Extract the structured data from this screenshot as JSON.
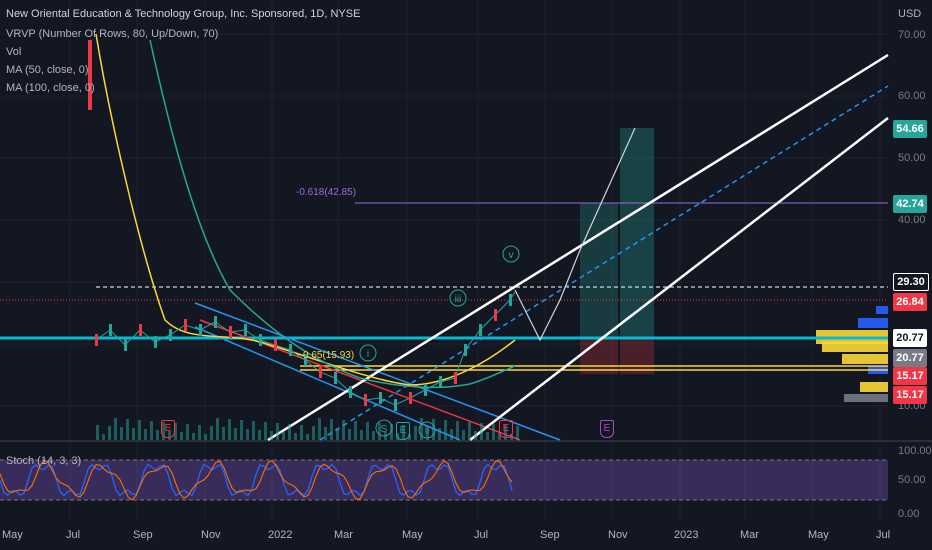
{
  "chart": {
    "title": "New Oriental Education & Technology Group, Inc. Sponsored, 1D, NYSE",
    "indicators": [
      "VRVP (Number Of Rows, 80, Up/Down, 70)",
      "Vol",
      "MA (50, close, 0)",
      "MA (100, close, 0)"
    ],
    "currency": "USD",
    "fib_label": "-0.618(42.85)",
    "fib_label2": "0.65(15.93)",
    "stoch_label": "Stoch (14, 3, 3)",
    "colors": {
      "background": "#131722",
      "cyan": "#00bcd4",
      "yellow": "#fdd835",
      "stoch_band": "#7e57c2",
      "red": "#f23645",
      "blue": "#2962ff"
    }
  },
  "price_axis": {
    "ticks": [
      "70.00",
      "60.00",
      "50.00",
      "40.00",
      "10.00"
    ],
    "tags": [
      {
        "value": "54.66",
        "color": "#26a69a",
        "text_color": "#ffffff"
      },
      {
        "value": "42.74",
        "color": "#26a69a",
        "text_color": "#ffffff"
      },
      {
        "value": "29.30",
        "color": "#131722",
        "text_color": "#ffffff"
      },
      {
        "value": "26.84",
        "color": "#f23645",
        "text_color": "#ffffff"
      },
      {
        "value": "20.77",
        "color": "#ffffff",
        "text_color": "#131722"
      },
      {
        "value": "20.77",
        "color": "#787b86",
        "text_color": "#ffffff"
      },
      {
        "value": "15.17",
        "color": "#f23645",
        "text_color": "#ffffff"
      },
      {
        "value": "15.17",
        "color": "#f23645",
        "text_color": "#ffffff"
      }
    ]
  },
  "stoch_axis": {
    "ticks": [
      "100.00",
      "50.00",
      "0.00"
    ]
  },
  "time_axis": {
    "labels": [
      "May",
      "Jul",
      "Sep",
      "Nov",
      "2022",
      "Mar",
      "May",
      "Jul",
      "Sep",
      "Nov",
      "2023",
      "Mar",
      "May",
      "Jul"
    ]
  },
  "markers": {
    "earnings": [
      "E",
      "E",
      "E",
      "E"
    ],
    "waves": [
      "i",
      "iii",
      "v",
      "S",
      "E",
      "ii"
    ]
  }
}
